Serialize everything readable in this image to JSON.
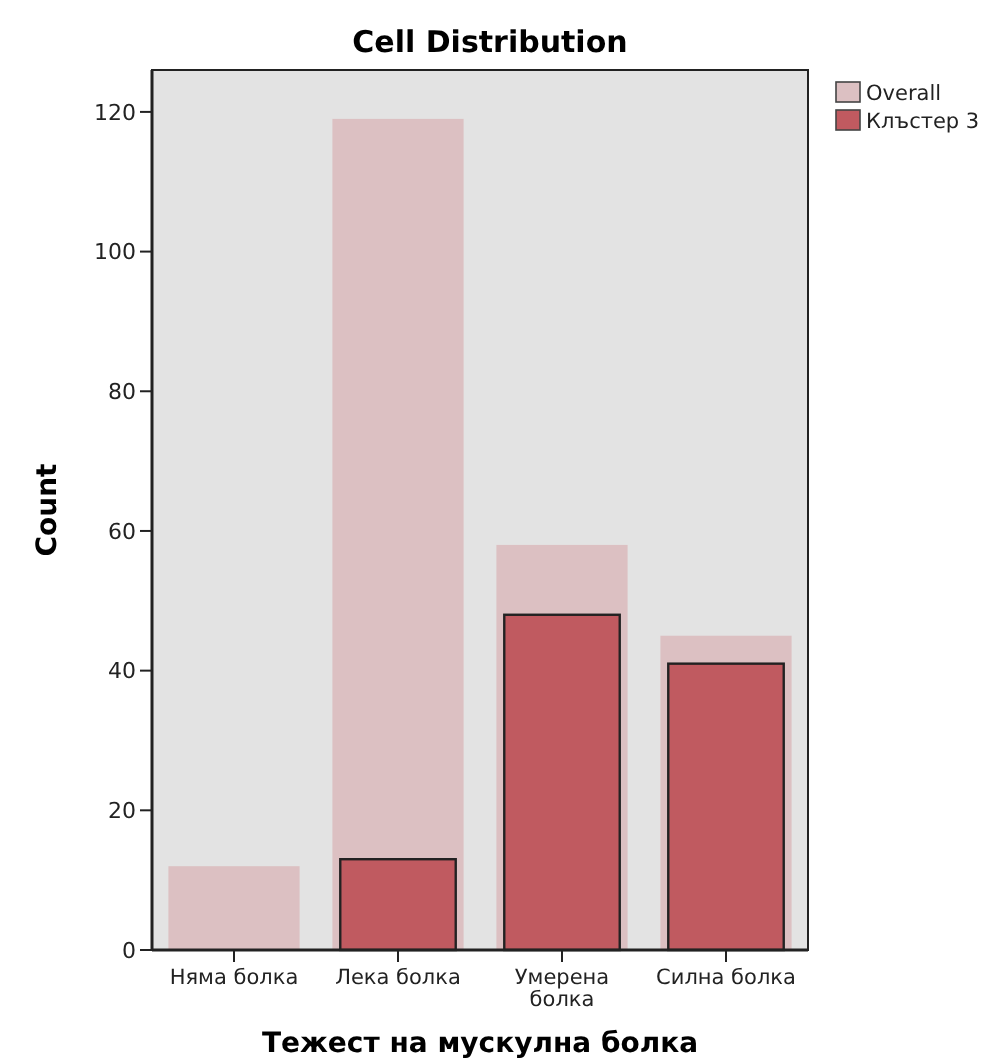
{
  "chart_data": {
    "type": "bar",
    "title": "Cell Distribution",
    "xlabel": "Тежест на мускулна болка",
    "ylabel": "Count",
    "categories": [
      "Няма болка",
      "Лека болка",
      "Умерена болка",
      "Силна болка"
    ],
    "series": [
      {
        "name": "Overall",
        "color": "#dcc0c2",
        "values": [
          12,
          119,
          58,
          45
        ]
      },
      {
        "name": "Клъстер 3",
        "color": "#c05a60",
        "values": [
          0,
          13,
          48,
          41
        ]
      }
    ],
    "ylim": [
      0,
      126
    ],
    "yticks": [
      0,
      20,
      40,
      60,
      80,
      100,
      120
    ],
    "grid": false,
    "legend": "top right"
  }
}
